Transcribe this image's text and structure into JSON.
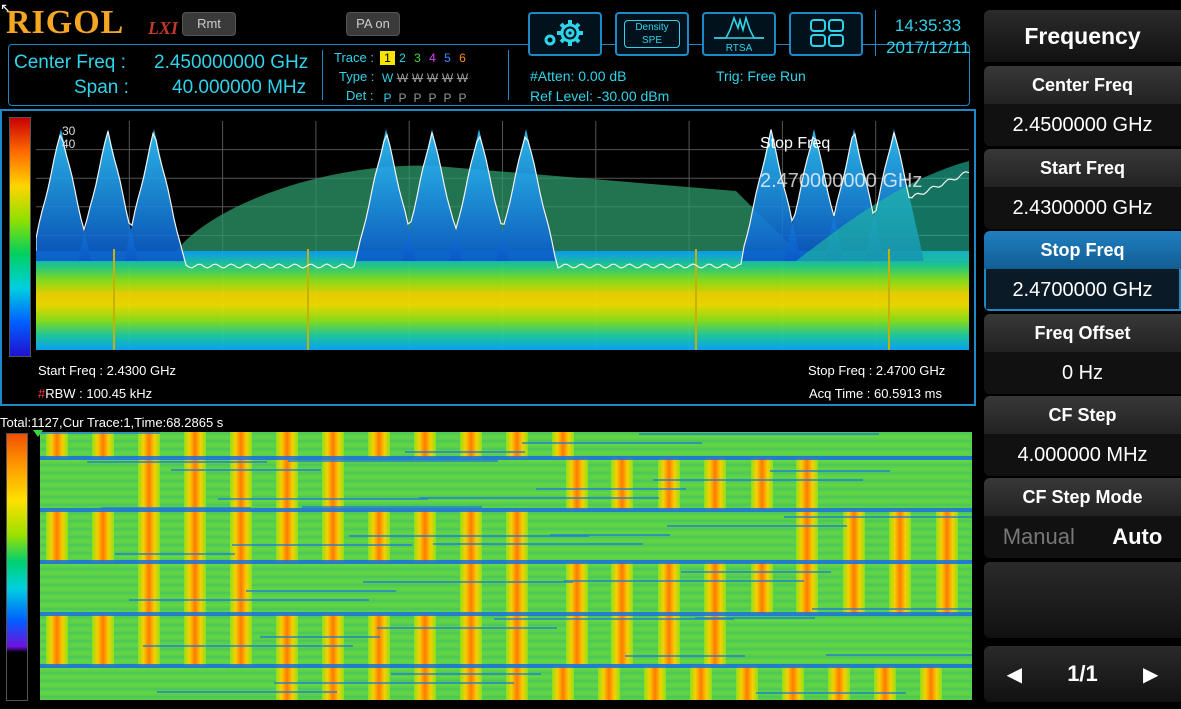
{
  "brand": {
    "logo": "RIGOL",
    "lxi": "LXI"
  },
  "status": {
    "rmt": "Rmt",
    "pa": "PA on"
  },
  "header": {
    "center_label": "Center Freq :",
    "center_value": "2.450000000 GHz",
    "span_label": "Span :",
    "span_value": "40.000000 MHz",
    "trace_label": "Trace :",
    "type_label": "Type :",
    "det_label": "Det :",
    "traces": [
      "1",
      "2",
      "3",
      "4",
      "5",
      "6"
    ],
    "trace_colors": [
      "#f7e400",
      "#2fd3ea",
      "#3ad93a",
      "#e040fb",
      "#3a8cff",
      "#ff8c1a"
    ],
    "types": [
      "W",
      "W",
      "W",
      "W",
      "W",
      "W"
    ],
    "dets": [
      "P",
      "P",
      "P",
      "P",
      "P",
      "P"
    ],
    "atten": "#Atten: 0.00 dB",
    "ref_level": "Ref Level: -30.00 dBm",
    "trig": "Trig: Free Run"
  },
  "toolbar": {
    "settings_icon": "gear-icon",
    "density_line1": "Density",
    "density_line2": "SPE",
    "rtsa_label": "RTSA",
    "layout_icon": "grid-icon"
  },
  "clock": {
    "time": "14:35:33",
    "date": "2017/12/11"
  },
  "menu": {
    "title": "Frequency",
    "items": [
      {
        "label": "Center Freq",
        "value": "2.4500000 GHz",
        "active": false
      },
      {
        "label": "Start Freq",
        "value": "2.4300000 GHz",
        "active": false
      },
      {
        "label": "Stop Freq",
        "value": "2.4700000 GHz",
        "active": true
      },
      {
        "label": "Freq Offset",
        "value": "0 Hz",
        "active": false
      },
      {
        "label": "CF Step",
        "value": "4.000000 MHz",
        "active": false
      }
    ],
    "mode": {
      "label": "CF Step Mode",
      "manual": "Manual",
      "auto": "Auto",
      "selected": "Auto"
    },
    "page": "1/1"
  },
  "spectrum": {
    "scale_top_1": "30",
    "scale_top_2": "40",
    "overlay_label": "Stop Freq",
    "overlay_value": "2.470000000 GHz",
    "start_freq": "Start Freq : 2.4300 GHz",
    "stop_freq": "Stop Freq : 2.4700 GHz",
    "rbw_hash": "#",
    "rbw": "RBW : 100.45 kHz",
    "acq_time": "Acq Time : 60.5913 ms"
  },
  "waterfall": {
    "header": "Total:1127,Cur Trace:1,Time:68.2865 s"
  }
}
